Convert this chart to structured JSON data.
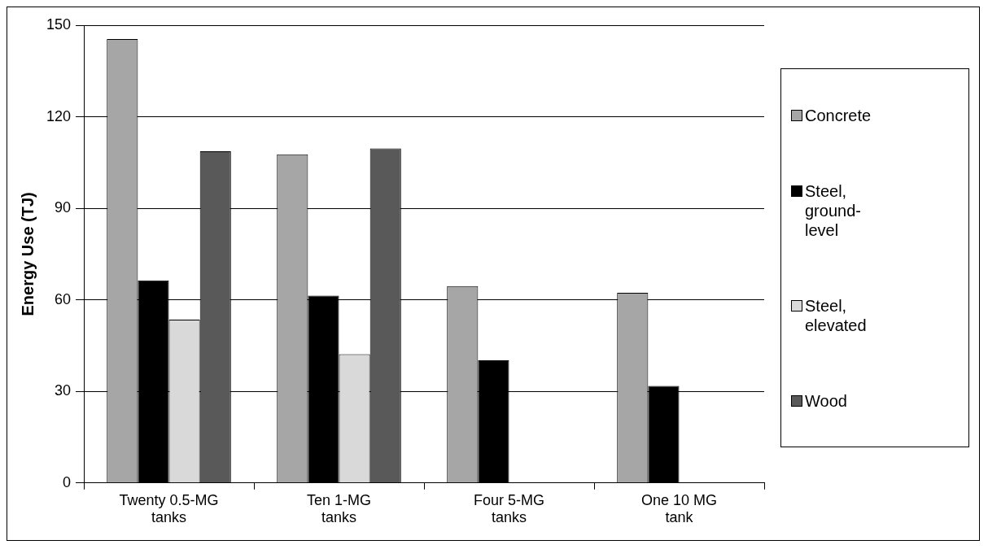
{
  "chart_data": {
    "type": "bar",
    "ylabel": "Energy Use (TJ)",
    "categories": [
      "Twenty 0.5-MG tanks",
      "Ten 1-MG tanks",
      "Four 5-MG tanks",
      "One 10 MG tank"
    ],
    "series": [
      {
        "name": "Concrete",
        "color": "#a6a6a6",
        "values": [
          145.5,
          107.7,
          64.5,
          62.3
        ]
      },
      {
        "name": "Steel, ground-level",
        "color": "#000000",
        "values": [
          66.4,
          61.4,
          40.2,
          31.8
        ]
      },
      {
        "name": "Steel, elevated",
        "color": "#d9d9d9",
        "values": [
          53.5,
          42.2,
          null,
          null
        ]
      },
      {
        "name": "Wood",
        "color": "#595959",
        "values": [
          108.7,
          109.6,
          null,
          null
        ]
      }
    ],
    "ylim": [
      0,
      150
    ],
    "yticks": [
      0,
      30,
      60,
      90,
      120,
      150
    ],
    "grid": "y",
    "legend": "right"
  }
}
